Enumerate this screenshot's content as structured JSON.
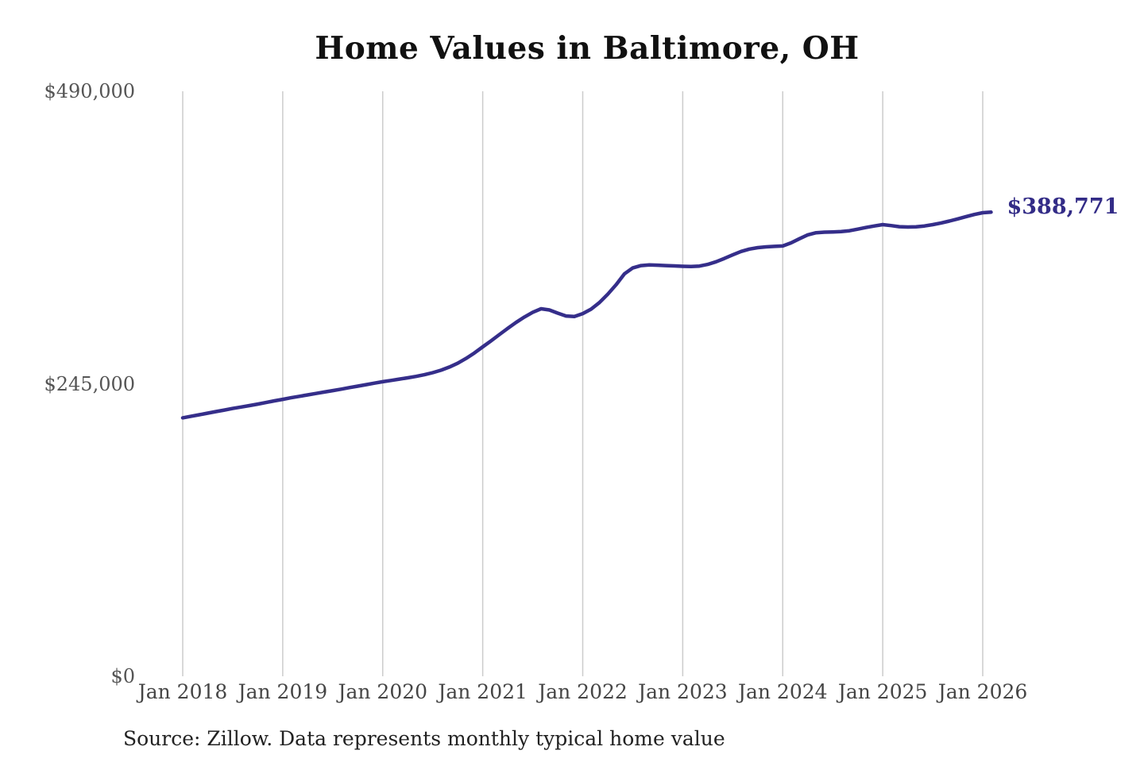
{
  "title": "Home Values in Baltimore, OH",
  "annotation": {
    "text": "$388,771"
  },
  "source_note": "Source: Zillow. Data represents monthly typical home value",
  "colors": {
    "background": "#ffffff",
    "line": "#352e8a",
    "grid": "#cccccc",
    "title_text": "#111111",
    "axis_text": "#555555",
    "x_axis_text": "#454545",
    "annotation_text": "#332c87",
    "source_text": "#222222"
  },
  "chart_data": {
    "type": "line",
    "title": "Home Values in Baltimore, OH",
    "series_name": "Monthly typical home value",
    "unit": "USD",
    "frequency": "monthly",
    "x_start": "2018-01",
    "x_end": "2026-02",
    "ylim": [
      0,
      490000
    ],
    "grid": "vertical",
    "legend": false,
    "y_ticks": [
      {
        "label": "$0",
        "value": 0
      },
      {
        "label": "$245,000",
        "value": 245000
      },
      {
        "label": "$490,000",
        "value": 490000
      }
    ],
    "x_tick_labels": [
      "Jan 2018",
      "Jan 2019",
      "Jan 2020",
      "Jan 2021",
      "Jan 2022",
      "Jan 2023",
      "Jan 2024",
      "Jan 2025",
      "Jan 2026"
    ],
    "values": [
      216500,
      217800,
      219100,
      220400,
      221700,
      223000,
      224300,
      225500,
      226700,
      228000,
      229300,
      230700,
      232000,
      233300,
      234500,
      235700,
      236900,
      238100,
      239300,
      240500,
      241800,
      243000,
      244300,
      245500,
      246700,
      247800,
      248900,
      250000,
      251200,
      252600,
      254300,
      256400,
      259000,
      262200,
      266200,
      270800,
      275900,
      281000,
      286200,
      291400,
      296400,
      300900,
      304900,
      307800,
      306800,
      304200,
      301800,
      301300,
      303800,
      307500,
      313000,
      320000,
      328000,
      337000,
      342000,
      344000,
      344500,
      344300,
      344000,
      343700,
      343400,
      343200,
      343600,
      345000,
      347200,
      350000,
      353000,
      355800,
      357800,
      359000,
      359700,
      360100,
      360400,
      363000,
      366500,
      369700,
      371500,
      372000,
      372200,
      372500,
      373200,
      374500,
      375900,
      377200,
      378300,
      377500,
      376600,
      376300,
      376500,
      377200,
      378300,
      379700,
      381300,
      383100,
      385000,
      386800,
      388300,
      388771
    ],
    "last_value_label": "$388,771",
    "source": "Source: Zillow. Data represents monthly typical home value"
  }
}
